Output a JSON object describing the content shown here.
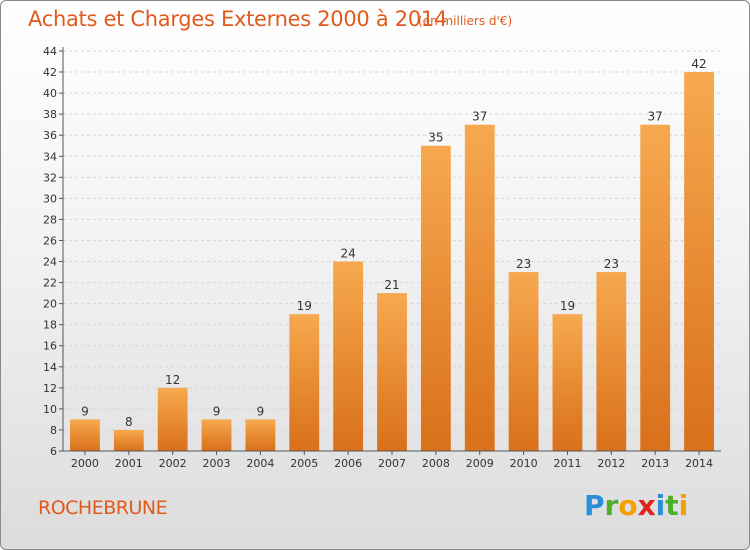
{
  "title": "Achats et Charges Externes 2000 à 2014",
  "subtitle": "(en milliers d'€)",
  "city": "ROCHEBRUNE",
  "logo": {
    "letters": [
      "P",
      "r",
      "o",
      "x",
      "i",
      "t",
      "i"
    ],
    "colors": [
      "#2b8ed8",
      "#4cae2b",
      "#f5a000",
      "#e2231a",
      "#2b8ed8",
      "#4cae2b",
      "#f5a000"
    ]
  },
  "colors": {
    "bar_top": "#f7a94f",
    "bar_bottom": "#d9701a",
    "accent": "#e05a1c"
  },
  "chart_data": {
    "type": "bar",
    "categories": [
      "2000",
      "2001",
      "2002",
      "2003",
      "2004",
      "2005",
      "2006",
      "2007",
      "2008",
      "2009",
      "2010",
      "2011",
      "2012",
      "2013",
      "2014"
    ],
    "values": [
      9,
      8,
      12,
      9,
      9,
      19,
      24,
      21,
      35,
      37,
      23,
      19,
      23,
      37,
      42
    ],
    "ylim": [
      6,
      44
    ],
    "yticks": [
      6,
      8,
      10,
      12,
      14,
      16,
      18,
      20,
      22,
      24,
      26,
      28,
      30,
      32,
      34,
      36,
      38,
      40,
      42,
      44
    ],
    "grid": true,
    "title": "Achats et Charges Externes 2000 à 2014",
    "xlabel": "",
    "ylabel": ""
  }
}
